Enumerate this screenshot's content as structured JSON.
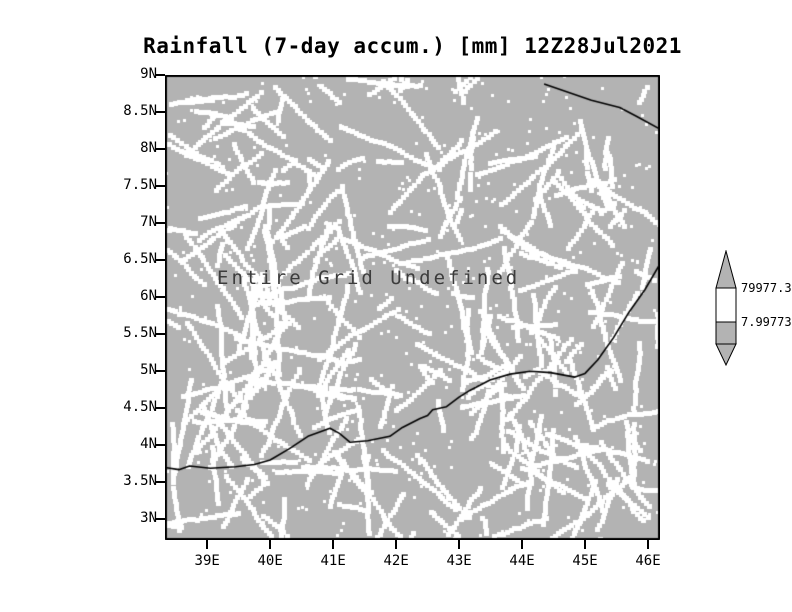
{
  "chart_data": {
    "type": "heatmap",
    "title": "Rainfall (7-day accum.) [mm] 12Z28Jul2021",
    "status_message": "Entire Grid Undefined",
    "background_color": "#b3b3b3",
    "undefined_color": "#ffffff",
    "grid": false,
    "legend_position": "colorbar-right",
    "x_range": [
      38.33,
      46.19
    ],
    "y_range": [
      2.72,
      9.0
    ],
    "x_axis": {
      "ticks": [
        {
          "lon": 39,
          "label": "39E"
        },
        {
          "lon": 40,
          "label": "40E"
        },
        {
          "lon": 41,
          "label": "41E"
        },
        {
          "lon": 42,
          "label": "42E"
        },
        {
          "lon": 43,
          "label": "43E"
        },
        {
          "lon": 44,
          "label": "44E"
        },
        {
          "lon": 45,
          "label": "45E"
        },
        {
          "lon": 46,
          "label": "46E"
        }
      ]
    },
    "y_axis": {
      "ticks": [
        {
          "lat": 9.0,
          "label": "9N"
        },
        {
          "lat": 8.5,
          "label": "8.5N"
        },
        {
          "lat": 8.0,
          "label": "8N"
        },
        {
          "lat": 7.5,
          "label": "7.5N"
        },
        {
          "lat": 7.0,
          "label": "7N"
        },
        {
          "lat": 6.5,
          "label": "6.5N"
        },
        {
          "lat": 6.0,
          "label": "6N"
        },
        {
          "lat": 5.5,
          "label": "5.5N"
        },
        {
          "lat": 5.0,
          "label": "5N"
        },
        {
          "lat": 4.5,
          "label": "4.5N"
        },
        {
          "lat": 4.0,
          "label": "4N"
        },
        {
          "lat": 3.5,
          "label": "3.5N"
        },
        {
          "lat": 3.0,
          "label": "3N"
        }
      ]
    },
    "colorbar": {
      "top_label": "79977.3",
      "bottom_label": "7.99773"
    },
    "map_lines": [
      [
        [
          44.35,
          8.88
        ],
        [
          45.1,
          8.66
        ],
        [
          45.55,
          8.56
        ],
        [
          45.8,
          8.45
        ],
        [
          46.19,
          8.27
        ]
      ],
      [
        [
          38.33,
          3.7
        ],
        [
          38.55,
          3.67
        ],
        [
          38.72,
          3.72
        ],
        [
          39.05,
          3.69
        ],
        [
          39.45,
          3.71
        ],
        [
          39.75,
          3.74
        ],
        [
          40.0,
          3.8
        ],
        [
          40.3,
          3.95
        ],
        [
          40.6,
          4.12
        ],
        [
          40.95,
          4.23
        ],
        [
          41.1,
          4.16
        ],
        [
          41.27,
          4.04
        ],
        [
          41.55,
          4.06
        ],
        [
          41.9,
          4.12
        ],
        [
          42.1,
          4.24
        ],
        [
          42.38,
          4.36
        ],
        [
          42.5,
          4.4
        ],
        [
          42.58,
          4.48
        ],
        [
          42.8,
          4.52
        ],
        [
          43.0,
          4.65
        ],
        [
          43.17,
          4.74
        ],
        [
          43.49,
          4.88
        ],
        [
          43.81,
          4.96
        ],
        [
          44.13,
          5.0
        ],
        [
          44.45,
          4.98
        ],
        [
          44.84,
          4.92
        ],
        [
          45.0,
          4.97
        ],
        [
          45.2,
          5.15
        ],
        [
          45.45,
          5.45
        ],
        [
          45.7,
          5.8
        ],
        [
          45.95,
          6.1
        ],
        [
          46.19,
          6.45
        ]
      ]
    ],
    "noise": {
      "seed": 7,
      "streaks": 240,
      "dots": 420
    }
  }
}
